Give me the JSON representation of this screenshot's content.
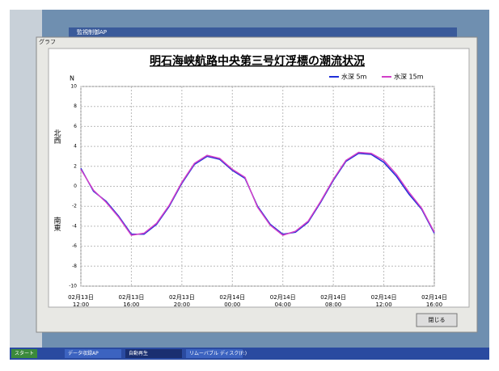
{
  "background_window": {
    "title": "監視制御AP"
  },
  "window": {
    "title": "グラフ",
    "close_button": "閉じる"
  },
  "taskbar": {
    "start": "スタート",
    "items": [
      "データ収録AP",
      "自動再生",
      "リムーバブル ディスク(F:)"
    ]
  },
  "chart_data": {
    "type": "line",
    "title": "明石海峡航路中央第三号灯浮標の潮流状況",
    "y_axis_label": "N",
    "annotations": [
      "北西",
      "南東"
    ],
    "categories": [
      "02月13日 12:00",
      null,
      null,
      null,
      "02月13日 16:00",
      null,
      null,
      null,
      "02月13日 20:00",
      null,
      null,
      null,
      "02月14日 00:00",
      null,
      null,
      null,
      "02月14日 04:00",
      null,
      null,
      null,
      "02月14日 08:00",
      null,
      null,
      null,
      "02月14日 12:00",
      null,
      null,
      null,
      "02月14日 16:00"
    ],
    "series": [
      {
        "name": "水深 5m",
        "color": "#1f2fd8",
        "values": [
          1.8,
          -0.5,
          -1.5,
          -3.0,
          -4.8,
          -4.8,
          -3.8,
          -2.0,
          0.3,
          2.2,
          3.0,
          2.7,
          1.6,
          0.8,
          -2.0,
          -3.8,
          -4.8,
          -4.6,
          -3.6,
          -1.6,
          0.6,
          2.5,
          3.3,
          3.2,
          2.4,
          1.0,
          -0.8,
          -2.3,
          -4.7
        ]
      },
      {
        "name": "水深 15m",
        "color": "#d23fc8",
        "values": [
          1.7,
          -0.4,
          -1.6,
          -3.1,
          -4.9,
          -4.7,
          -3.7,
          -1.9,
          0.4,
          2.3,
          3.1,
          2.8,
          1.7,
          0.9,
          -2.1,
          -3.9,
          -4.9,
          -4.5,
          -3.5,
          -1.5,
          0.7,
          2.6,
          3.4,
          3.3,
          2.6,
          1.2,
          -0.6,
          -2.2,
          -4.6
        ]
      }
    ],
    "ylim": [
      -10,
      10
    ],
    "yticks": [
      -10,
      -8,
      -6,
      -4,
      -2,
      0,
      2,
      4,
      6,
      8,
      10
    ],
    "grid": true,
    "legend": "top-right"
  }
}
